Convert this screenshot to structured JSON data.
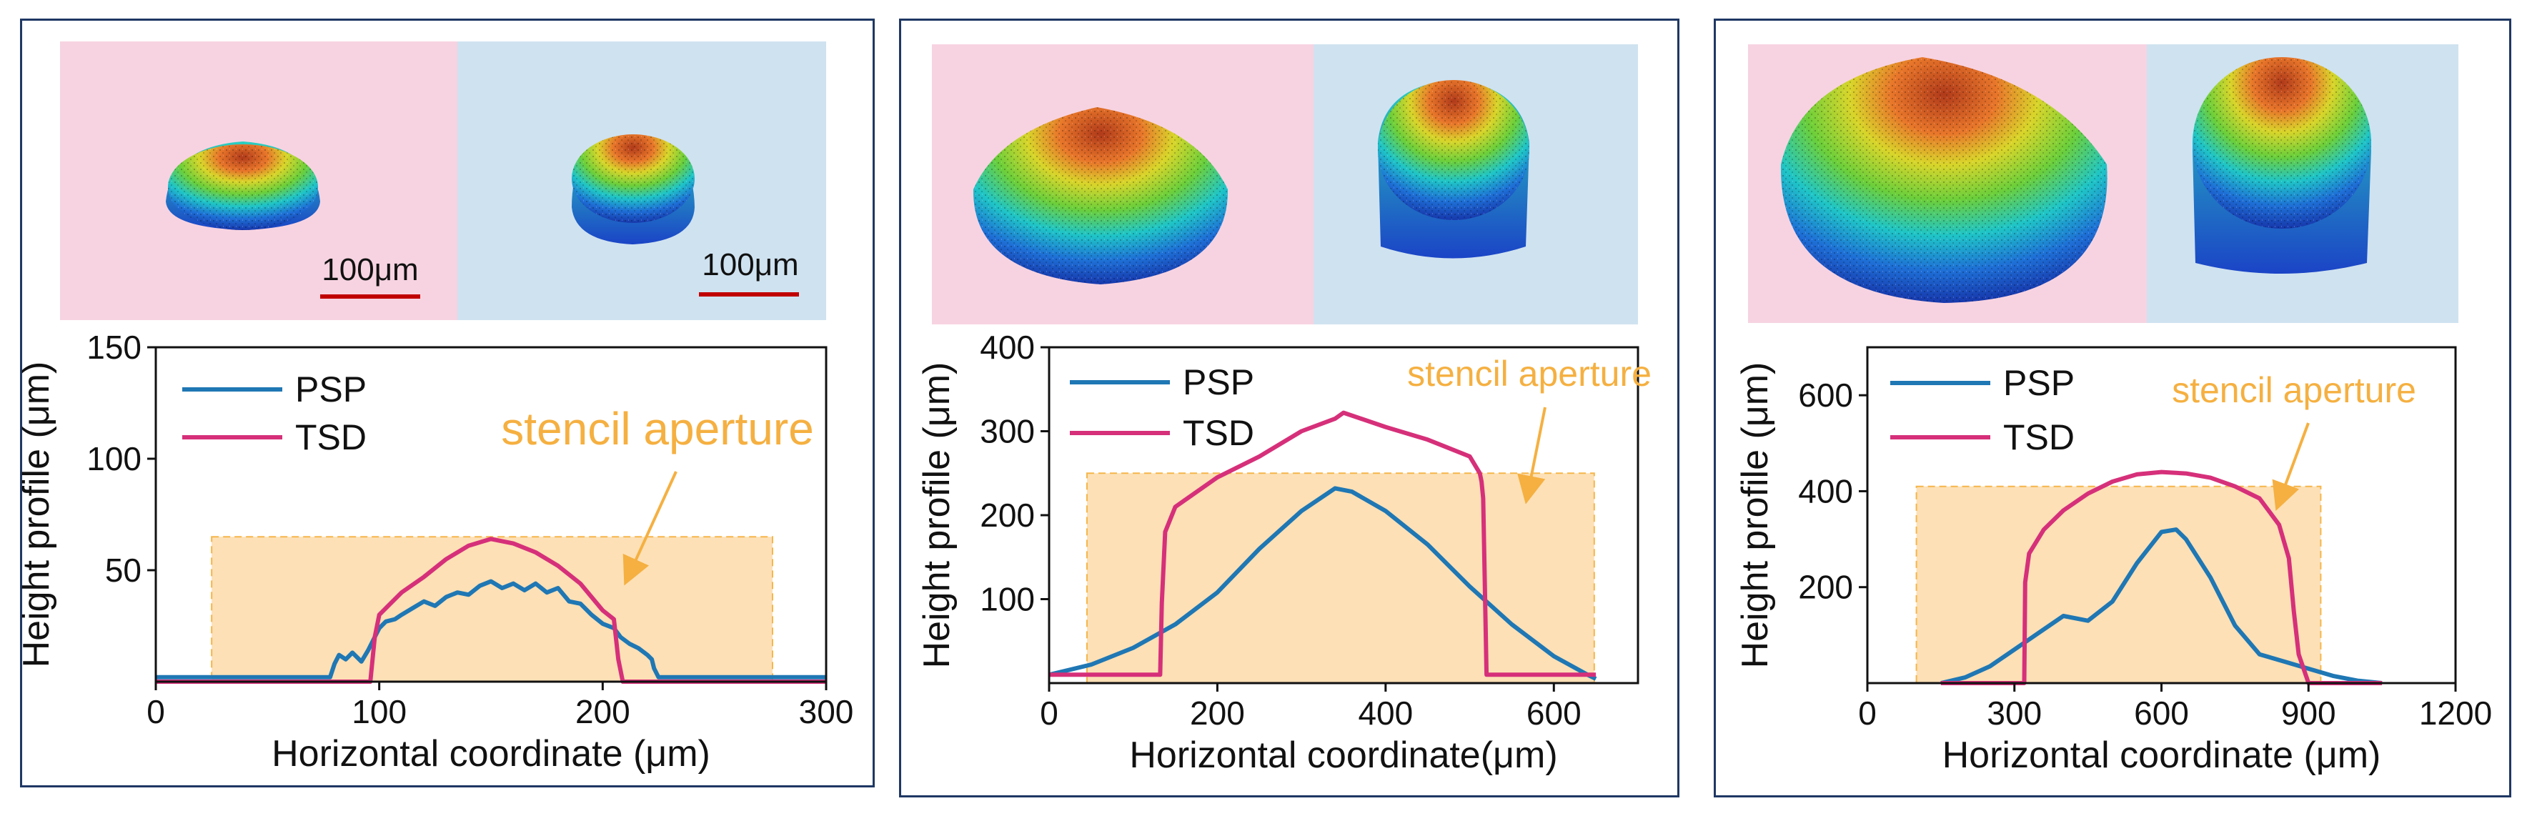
{
  "palette": {
    "psp": "#1f77b4",
    "tsd": "#d6307a",
    "aperture_fill": "#fde0b6",
    "aperture_stroke": "#f5b54a",
    "aperture_text": "#f5b041",
    "scale_bar": "#c00000",
    "bg_pink": "#f7d3e1",
    "bg_blue": "#cfe2f0",
    "frame": "#1f3864"
  },
  "chart_data": [
    {
      "type": "line",
      "panel": "a",
      "title": "",
      "xlabel": "Horizontal coordinate (μm)",
      "ylabel": "Height profile (μm)",
      "xlim": [
        0,
        300
      ],
      "ylim": [
        0,
        150
      ],
      "xticks": [
        "0",
        "100",
        "200",
        "300"
      ],
      "yticks": [
        "50",
        "100",
        "150"
      ],
      "legend_position": "top-left",
      "annotation": "stencil aperture",
      "scale_bars": [
        "100μm",
        "100μm"
      ],
      "aperture": {
        "x0": 25,
        "x1": 276,
        "y": 65
      },
      "series": [
        {
          "name": "PSP",
          "x": [
            0,
            78,
            80,
            82,
            85,
            88,
            92,
            95,
            98,
            100,
            103,
            107,
            110,
            115,
            120,
            125,
            130,
            135,
            140,
            145,
            150,
            155,
            160,
            165,
            170,
            175,
            180,
            185,
            190,
            195,
            200,
            205,
            208,
            212,
            216,
            220,
            222,
            223,
            225,
            300
          ],
          "y": [
            2,
            2,
            8,
            12,
            10,
            13,
            9,
            14,
            20,
            24,
            27,
            28,
            30,
            33,
            36,
            34,
            38,
            40,
            39,
            43,
            45,
            42,
            44,
            41,
            44,
            40,
            42,
            36,
            35,
            30,
            26,
            24,
            20,
            17,
            15,
            12,
            10,
            6,
            2,
            2
          ]
        },
        {
          "name": "TSD",
          "x": [
            0,
            96,
            98,
            100,
            105,
            110,
            120,
            130,
            140,
            150,
            160,
            170,
            180,
            190,
            195,
            200,
            205,
            207,
            209,
            300
          ],
          "y": [
            0,
            0,
            20,
            30,
            35,
            40,
            47,
            55,
            61,
            64,
            62,
            58,
            52,
            44,
            38,
            32,
            28,
            10,
            0,
            0
          ]
        }
      ]
    },
    {
      "type": "line",
      "panel": "b",
      "title": "",
      "xlabel": "Horizontal coordinate(μm)",
      "ylabel": "Height profile (μm)",
      "xlim": [
        0,
        700
      ],
      "ylim": [
        0,
        400
      ],
      "xticks": [
        "0",
        "200",
        "400",
        "600"
      ],
      "yticks": [
        "100",
        "200",
        "300",
        "400"
      ],
      "legend_position": "top-left",
      "annotation": "stencil aperture",
      "aperture": {
        "x0": 45,
        "x1": 648,
        "y": 250
      },
      "series": [
        {
          "name": "PSP",
          "x": [
            0,
            50,
            100,
            150,
            200,
            250,
            300,
            340,
            360,
            400,
            450,
            500,
            550,
            600,
            640,
            650
          ],
          "y": [
            10,
            22,
            42,
            70,
            108,
            160,
            205,
            232,
            228,
            205,
            165,
            115,
            70,
            32,
            10,
            5
          ]
        },
        {
          "name": "TSD",
          "x": [
            0,
            132,
            134,
            138,
            150,
            200,
            250,
            300,
            340,
            350,
            400,
            450,
            500,
            512,
            514,
            516,
            520,
            650
          ],
          "y": [
            10,
            10,
            95,
            180,
            210,
            245,
            270,
            300,
            315,
            322,
            305,
            290,
            270,
            250,
            240,
            220,
            10,
            10
          ]
        }
      ]
    },
    {
      "type": "line",
      "panel": "c",
      "title": "",
      "xlabel": "Horizontal coordinate (μm)",
      "ylabel": "Height profile (μm)",
      "xlim": [
        0,
        1200
      ],
      "ylim": [
        0,
        700
      ],
      "xticks": [
        "0",
        "300",
        "600",
        "900",
        "1200"
      ],
      "yticks": [
        "200",
        "400",
        "600"
      ],
      "legend_position": "top-left",
      "annotation": "stencil aperture",
      "aperture": {
        "x0": 100,
        "x1": 925,
        "y": 410
      },
      "series": [
        {
          "name": "PSP",
          "x": [
            150,
            200,
            250,
            300,
            350,
            400,
            450,
            500,
            550,
            600,
            630,
            650,
            700,
            750,
            800,
            850,
            900,
            950,
            1000,
            1050
          ],
          "y": [
            0,
            12,
            35,
            70,
            105,
            140,
            130,
            170,
            250,
            315,
            320,
            300,
            220,
            120,
            60,
            45,
            30,
            15,
            5,
            0
          ]
        },
        {
          "name": "TSD",
          "x": [
            150,
            320,
            322,
            330,
            360,
            400,
            450,
            500,
            550,
            600,
            650,
            700,
            750,
            800,
            840,
            860,
            870,
            880,
            900,
            1050
          ],
          "y": [
            0,
            0,
            210,
            270,
            320,
            360,
            395,
            420,
            435,
            440,
            437,
            428,
            410,
            385,
            330,
            260,
            150,
            60,
            0,
            0
          ]
        }
      ]
    }
  ]
}
